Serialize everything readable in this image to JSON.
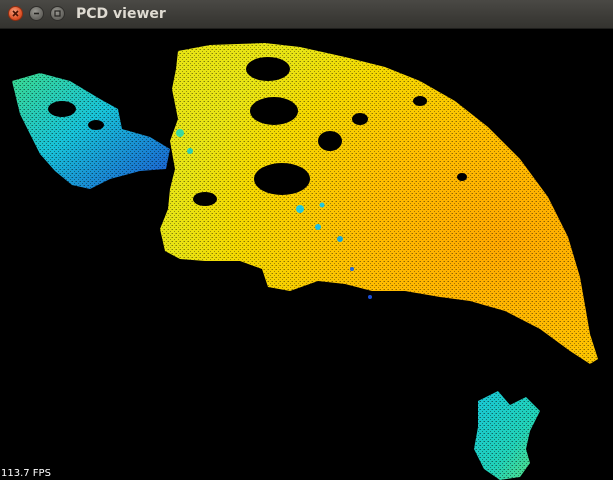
{
  "window": {
    "title": "PCD viewer",
    "buttons": {
      "close": "close",
      "minimize": "minimize",
      "maximize": "maximize"
    }
  },
  "viewer": {
    "fps_text": "113.7 FPS",
    "background": "#000000",
    "colormap": [
      "#1a4fd8",
      "#12b6e0",
      "#3fd9a8",
      "#e6e81a",
      "#ffcc00",
      "#ffb300"
    ]
  }
}
